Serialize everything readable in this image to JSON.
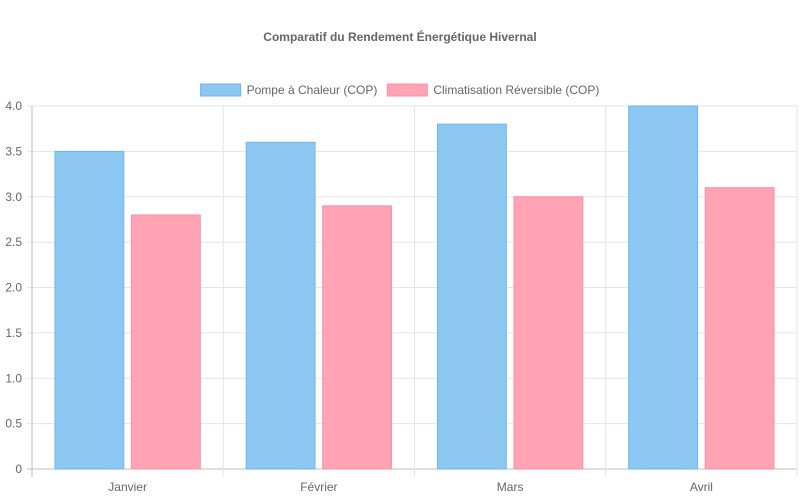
{
  "chart_data": {
    "type": "bar",
    "title": "Comparatif du Rendement Énergétique Hivernal",
    "categories": [
      "Janvier",
      "Février",
      "Mars",
      "Avril"
    ],
    "series": [
      {
        "name": "Pompe à Chaleur (COP)",
        "values": [
          3.5,
          3.6,
          3.8,
          4.0
        ],
        "color": "#8cc8f2",
        "border": "#6db6ec"
      },
      {
        "name": "Climatisation Réversible (COP)",
        "values": [
          2.8,
          2.9,
          3.0,
          3.1
        ],
        "color": "#ffa3b5",
        "border": "#ff8fa5"
      }
    ],
    "ylim": [
      0,
      4
    ],
    "yticks": [
      "0",
      "0.5",
      "1.0",
      "1.5",
      "2.0",
      "2.5",
      "3.0",
      "3.5",
      "4.0"
    ],
    "grid": true,
    "legend": "top-center",
    "xlabel": "",
    "ylabel": ""
  }
}
